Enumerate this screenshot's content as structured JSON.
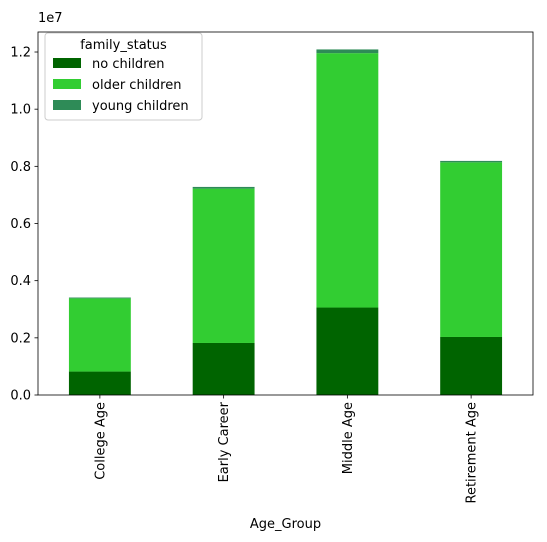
{
  "chart_data": {
    "type": "bar",
    "stacked": true,
    "xlabel": "Age_Group",
    "ylabel": "",
    "y_offset_label": "1e7",
    "y_scale": 10000000,
    "ylim": [
      0,
      12700000
    ],
    "y_ticks": [
      0,
      2000000,
      4000000,
      6000000,
      8000000,
      10000000,
      12000000
    ],
    "y_tick_labels": [
      "0.0",
      "0.2",
      "0.4",
      "0.6",
      "0.8",
      "1.0",
      "1.2"
    ],
    "categories": [
      "College Age",
      "Early Career",
      "Middle Age",
      "Retirement Age"
    ],
    "legend": {
      "title": "family_status",
      "placement": "upper-left"
    },
    "grid": false,
    "series": [
      {
        "name": "no children",
        "color": "#006400",
        "values": [
          820000,
          1820000,
          3060000,
          2030000
        ]
      },
      {
        "name": "older children",
        "color": "#32CD32",
        "values": [
          2560000,
          5400000,
          8900000,
          6110000
        ]
      },
      {
        "name": "young children",
        "color": "#2E8B57",
        "values": [
          30000,
          60000,
          130000,
          50000
        ]
      }
    ]
  }
}
